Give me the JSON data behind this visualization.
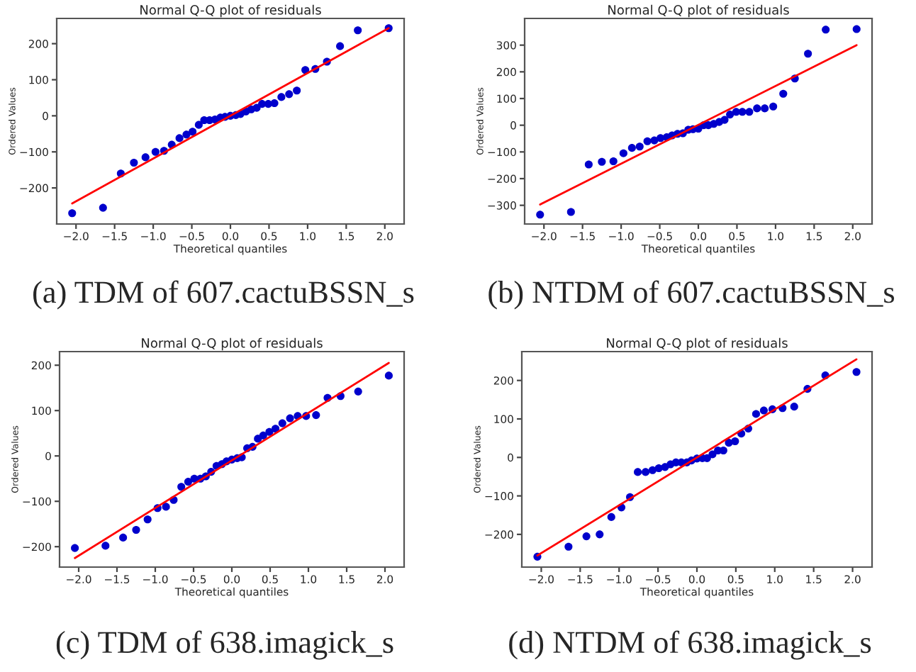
{
  "chart_data": [
    {
      "type": "scatter",
      "title": "Normal Q-Q plot of residuals",
      "xlabel": "Theoretical quantiles",
      "ylabel": "Ordered Values",
      "annotations": [
        "(a) TDM of 607.cactuBSSN_s"
      ],
      "xlim": [
        -2.25,
        2.25
      ],
      "ylim": [
        -300,
        270
      ],
      "xticks": [
        {
          "value": -2.0,
          "label": "−2.0"
        },
        {
          "value": -1.5,
          "label": "−1.5"
        },
        {
          "value": -1.0,
          "label": "−1.0"
        },
        {
          "value": -0.5,
          "label": "−0.5"
        },
        {
          "value": 0.0,
          "label": "0.0"
        },
        {
          "value": 0.5,
          "label": "0.5"
        },
        {
          "value": 1.0,
          "label": "1.0"
        },
        {
          "value": 1.5,
          "label": "1.5"
        },
        {
          "value": 2.0,
          "label": "2.0"
        }
      ],
      "yticks": [
        {
          "value": -200,
          "label": "−200"
        },
        {
          "value": -100,
          "label": "−100"
        },
        0,
        100,
        200
      ],
      "grid": false,
      "series": [
        {
          "marker": "circle",
          "color": "#0000cc",
          "x": [
            -2.05,
            -1.65,
            -1.42,
            -1.25,
            -1.1,
            -0.97,
            -0.86,
            -0.76,
            -0.66,
            -0.57,
            -0.49,
            -0.41,
            -0.34,
            -0.27,
            -0.2,
            -0.13,
            -0.07,
            0,
            0.07,
            0.13,
            0.2,
            0.27,
            0.34,
            0.41,
            0.49,
            0.57,
            0.66,
            0.76,
            0.86,
            0.97,
            1.1,
            1.25,
            1.42,
            1.65,
            2.05
          ],
          "values": [
            -270,
            -255,
            -160,
            -130,
            -115,
            -100,
            -97,
            -80,
            -62,
            -52,
            -44,
            -25,
            -12,
            -12,
            -10,
            -5,
            -3,
            0,
            2,
            5,
            12,
            18,
            22,
            33,
            33,
            35,
            52,
            60,
            70,
            127,
            130,
            150,
            193,
            237,
            243
          ]
        },
        {
          "type": "line",
          "color": "#ff0000",
          "x": [
            -2.05,
            2.05
          ],
          "values": [
            -243,
            243
          ]
        }
      ]
    },
    {
      "type": "scatter",
      "title": "Normal Q-Q plot of residuals",
      "xlabel": "Theoretical quantiles",
      "ylabel": "Ordered Values",
      "annotations": [
        "(b) NTDM of 607.cactuBSSN_s"
      ],
      "xlim": [
        -2.25,
        2.25
      ],
      "ylim": [
        -370,
        400
      ],
      "xticks": [
        {
          "value": -2.0,
          "label": "−2.0"
        },
        {
          "value": -1.5,
          "label": "−1.5"
        },
        {
          "value": -1.0,
          "label": "−1.0"
        },
        {
          "value": -0.5,
          "label": "−0.5"
        },
        {
          "value": 0.0,
          "label": "0.0"
        },
        {
          "value": 0.5,
          "label": "0.5"
        },
        {
          "value": 1.0,
          "label": "1.0"
        },
        {
          "value": 1.5,
          "label": "1.5"
        },
        {
          "value": 2.0,
          "label": "2.0"
        }
      ],
      "yticks": [
        {
          "value": -300,
          "label": "−300"
        },
        {
          "value": -200,
          "label": "−200"
        },
        {
          "value": -100,
          "label": "−100"
        },
        0,
        100,
        200,
        300
      ],
      "grid": false,
      "series": [
        {
          "marker": "circle",
          "color": "#0000cc",
          "x": [
            -2.05,
            -1.65,
            -1.42,
            -1.25,
            -1.1,
            -0.97,
            -0.86,
            -0.76,
            -0.66,
            -0.57,
            -0.49,
            -0.41,
            -0.34,
            -0.27,
            -0.2,
            -0.13,
            -0.07,
            0,
            0.07,
            0.13,
            0.2,
            0.27,
            0.34,
            0.41,
            0.49,
            0.57,
            0.66,
            0.76,
            0.86,
            0.97,
            1.1,
            1.25,
            1.42,
            1.65,
            2.05
          ],
          "values": [
            -335,
            -325,
            -147,
            -137,
            -135,
            -105,
            -85,
            -80,
            -60,
            -57,
            -48,
            -45,
            -38,
            -32,
            -30,
            -17,
            -15,
            -13,
            0,
            0,
            5,
            12,
            20,
            40,
            50,
            50,
            50,
            63,
            63,
            70,
            118,
            175,
            268,
            358,
            360
          ]
        },
        {
          "type": "line",
          "color": "#ff0000",
          "x": [
            -2.05,
            2.05
          ],
          "values": [
            -297,
            300
          ]
        }
      ]
    },
    {
      "type": "scatter",
      "title": "Normal Q-Q plot of residuals",
      "xlabel": "Theoretical quantiles",
      "ylabel": "Ordered Values",
      "annotations": [
        "(c) TDM of 638.imagick_s"
      ],
      "xlim": [
        -2.25,
        2.25
      ],
      "ylim": [
        -245,
        230
      ],
      "xticks": [
        {
          "value": -2.0,
          "label": "−2.0"
        },
        {
          "value": -1.5,
          "label": "−1.5"
        },
        {
          "value": -1.0,
          "label": "−1.0"
        },
        {
          "value": -0.5,
          "label": "−0.5"
        },
        {
          "value": 0.0,
          "label": "0.0"
        },
        {
          "value": 0.5,
          "label": "0.5"
        },
        {
          "value": 1.0,
          "label": "1.0"
        },
        {
          "value": 1.5,
          "label": "1.5"
        },
        {
          "value": 2.0,
          "label": "2.0"
        }
      ],
      "yticks": [
        {
          "value": -200,
          "label": "−200"
        },
        {
          "value": -100,
          "label": "−100"
        },
        0,
        100,
        200
      ],
      "grid": false,
      "series": [
        {
          "marker": "circle",
          "color": "#0000cc",
          "x": [
            -2.05,
            -1.65,
            -1.42,
            -1.25,
            -1.1,
            -0.97,
            -0.86,
            -0.76,
            -0.66,
            -0.57,
            -0.49,
            -0.41,
            -0.34,
            -0.27,
            -0.2,
            -0.13,
            -0.07,
            0,
            0.07,
            0.13,
            0.2,
            0.27,
            0.34,
            0.41,
            0.49,
            0.57,
            0.66,
            0.76,
            0.86,
            0.97,
            1.1,
            1.25,
            1.42,
            1.65,
            2.05
          ],
          "values": [
            -203,
            -198,
            -180,
            -163,
            -140,
            -115,
            -112,
            -97,
            -68,
            -57,
            -50,
            -50,
            -45,
            -35,
            -22,
            -18,
            -12,
            -8,
            -5,
            -3,
            17,
            20,
            38,
            45,
            53,
            60,
            72,
            83,
            88,
            88,
            90,
            128,
            132,
            142,
            177
          ]
        },
        {
          "type": "line",
          "color": "#ff0000",
          "x": [
            -2.05,
            2.05
          ],
          "values": [
            -225,
            205
          ]
        }
      ]
    },
    {
      "type": "scatter",
      "title": "Normal Q-Q plot of residuals",
      "xlabel": "Theoretical quantiles",
      "ylabel": "Ordered Values",
      "annotations": [
        "(d) NTDM of 638.imagick_s"
      ],
      "xlim": [
        -2.25,
        2.25
      ],
      "ylim": [
        -285,
        275
      ],
      "xticks": [
        {
          "value": -2.0,
          "label": "−2.0"
        },
        {
          "value": -1.5,
          "label": "−1.5"
        },
        {
          "value": -1.0,
          "label": "−1.0"
        },
        {
          "value": -0.5,
          "label": "−0.5"
        },
        {
          "value": 0.0,
          "label": "0.0"
        },
        {
          "value": 0.5,
          "label": "0.5"
        },
        {
          "value": 1.0,
          "label": "1.0"
        },
        {
          "value": 1.5,
          "label": "1.5"
        },
        {
          "value": 2.0,
          "label": "2.0"
        }
      ],
      "yticks": [
        {
          "value": -200,
          "label": "−200"
        },
        {
          "value": -100,
          "label": "−100"
        },
        0,
        100,
        200
      ],
      "grid": false,
      "series": [
        {
          "marker": "circle",
          "color": "#0000cc",
          "x": [
            -2.05,
            -1.65,
            -1.42,
            -1.25,
            -1.1,
            -0.97,
            -0.86,
            -0.76,
            -0.66,
            -0.57,
            -0.49,
            -0.41,
            -0.34,
            -0.27,
            -0.2,
            -0.13,
            -0.07,
            0,
            0.07,
            0.13,
            0.2,
            0.27,
            0.34,
            0.41,
            0.49,
            0.57,
            0.66,
            0.76,
            0.86,
            0.97,
            1.1,
            1.25,
            1.42,
            1.65,
            2.05
          ],
          "values": [
            -258,
            -232,
            -205,
            -200,
            -155,
            -130,
            -103,
            -38,
            -38,
            -33,
            -28,
            -25,
            -18,
            -13,
            -13,
            -13,
            -8,
            -3,
            -2,
            -2,
            8,
            18,
            18,
            38,
            42,
            62,
            75,
            113,
            122,
            125,
            128,
            132,
            178,
            213,
            222
          ]
        },
        {
          "type": "line",
          "color": "#ff0000",
          "x": [
            -2.05,
            2.05
          ],
          "values": [
            -255,
            255
          ]
        }
      ]
    }
  ]
}
